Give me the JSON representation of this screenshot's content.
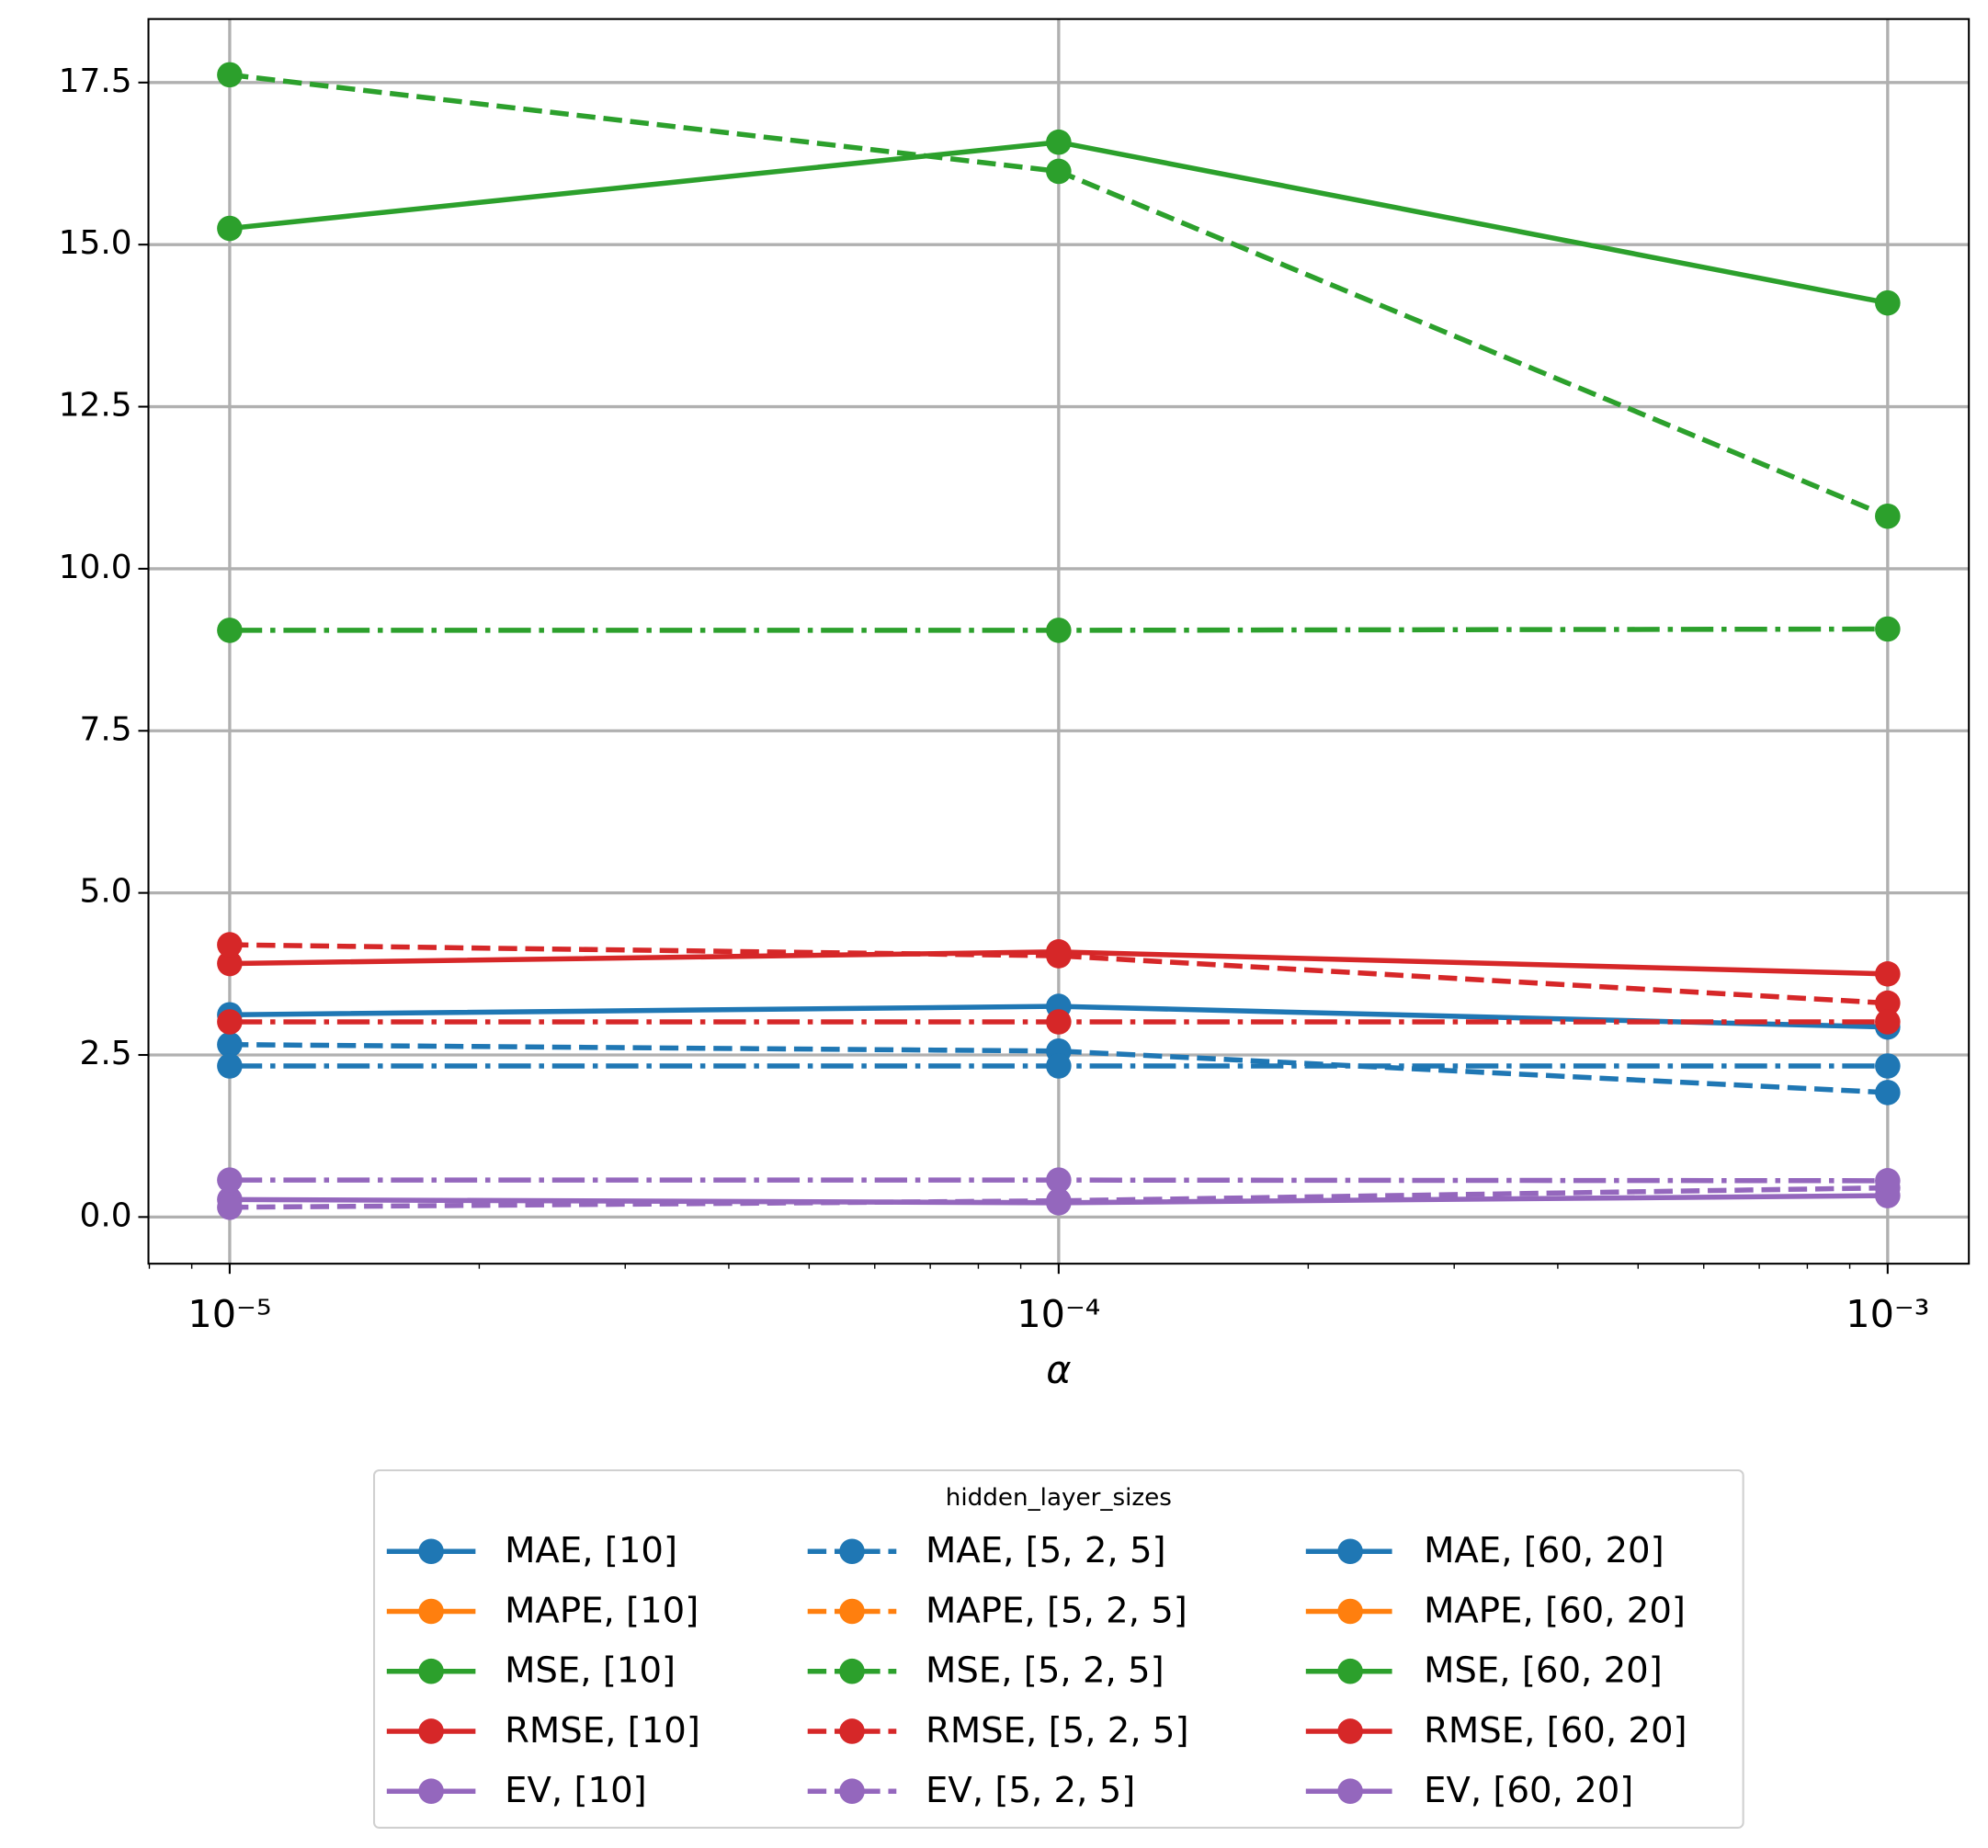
{
  "chart_data": {
    "type": "line",
    "xlabel": "α",
    "xscale": "log",
    "x": [
      1e-05,
      0.0001,
      0.001
    ],
    "xlim": [
      7.98e-06,
      0.001253
    ],
    "xticks": [
      {
        "value": 1e-05,
        "label": "10⁻⁵"
      },
      {
        "value": 0.0001,
        "label": "10⁻⁴"
      },
      {
        "value": 0.001,
        "label": "10⁻³"
      }
    ],
    "xticks_minor": [
      8e-06,
      9e-06,
      2e-05,
      3e-05,
      4e-05,
      5e-05,
      6e-05,
      7e-05,
      8e-05,
      9e-05,
      0.0002,
      0.0003,
      0.0004,
      0.0005,
      0.0006,
      0.0007,
      0.0008,
      0.0009
    ],
    "ylim": [
      -0.72,
      18.48
    ],
    "yticks": [
      {
        "value": 0,
        "label": "0.0"
      },
      2.5,
      {
        "value": 5,
        "label": "5.0"
      },
      7.5,
      {
        "value": 10,
        "label": "10.0"
      },
      12.5,
      {
        "value": 15,
        "label": "15.0"
      },
      17.5
    ],
    "grid": true,
    "legend_title": "hidden_layer_sizes",
    "legend_position": "below",
    "legend_columns": 3,
    "series": [
      {
        "name": "MAE, [10]",
        "color": "#1f77b4",
        "linestyle": "solid",
        "values": [
          3.12,
          3.25,
          2.93
        ]
      },
      {
        "name": "MAPE, [10]",
        "color": "#ff7f0e",
        "linestyle": "solid",
        "values": [
          null,
          null,
          null
        ]
      },
      {
        "name": "MSE, [10]",
        "color": "#2ca02c",
        "linestyle": "solid",
        "values": [
          15.25,
          16.58,
          14.1
        ]
      },
      {
        "name": "RMSE, [10]",
        "color": "#d62728",
        "linestyle": "solid",
        "values": [
          3.91,
          4.09,
          3.75
        ]
      },
      {
        "name": "EV, [10]",
        "color": "#9467bd",
        "linestyle": "solid",
        "values": [
          0.27,
          0.22,
          0.33
        ]
      },
      {
        "name": "MAE, [5, 2, 5]",
        "color": "#1f77b4",
        "linestyle": "dashed",
        "values": [
          2.66,
          2.56,
          1.92
        ]
      },
      {
        "name": "MAPE, [5, 2, 5]",
        "color": "#ff7f0e",
        "linestyle": "dashed",
        "values": [
          null,
          null,
          null
        ]
      },
      {
        "name": "MSE, [5, 2, 5]",
        "color": "#2ca02c",
        "linestyle": "dashed",
        "values": [
          17.62,
          16.13,
          10.81
        ]
      },
      {
        "name": "RMSE, [5, 2, 5]",
        "color": "#d62728",
        "linestyle": "dashed",
        "values": [
          4.2,
          4.03,
          3.3
        ]
      },
      {
        "name": "EV, [5, 2, 5]",
        "color": "#9467bd",
        "linestyle": "dashed",
        "values": [
          0.15,
          0.25,
          0.45
        ]
      },
      {
        "name": "MAE, [60, 20]",
        "color": "#1f77b4",
        "linestyle": "dashdot",
        "values": [
          2.33,
          2.33,
          2.33
        ]
      },
      {
        "name": "MAPE, [60, 20]",
        "color": "#ff7f0e",
        "linestyle": "dashdot",
        "values": [
          null,
          null,
          null
        ]
      },
      {
        "name": "MSE, [60, 20]",
        "color": "#2ca02c",
        "linestyle": "dashdot",
        "values": [
          9.05,
          9.05,
          9.07
        ]
      },
      {
        "name": "RMSE, [60, 20]",
        "color": "#d62728",
        "linestyle": "dashdot",
        "values": [
          3.01,
          3.01,
          3.01
        ]
      },
      {
        "name": "EV, [60, 20]",
        "color": "#9467bd",
        "linestyle": "dashdot",
        "values": [
          0.57,
          0.57,
          0.56
        ]
      }
    ]
  }
}
